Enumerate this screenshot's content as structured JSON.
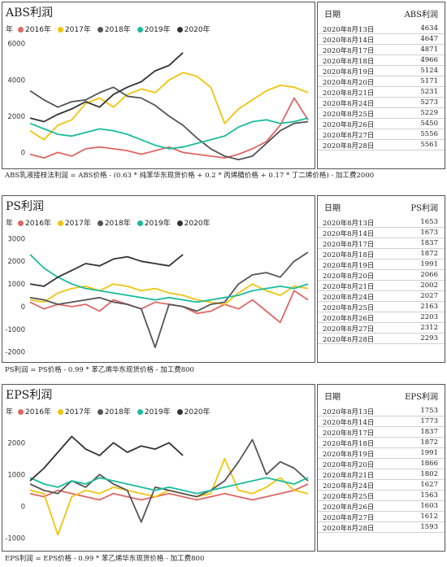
{
  "legend_label": "年",
  "colors": {
    "2016年": "#e06666",
    "2017年": "#f2c40f",
    "2018年": "#555555",
    "2019年": "#1abc9c",
    "2020年": "#333333"
  },
  "charts": [
    {
      "id": "abs",
      "title": "ABS利润",
      "table_header": {
        "date": "日期",
        "value": "ABS利润"
      },
      "table_rows": [
        {
          "date": "2020年8月13日",
          "value": "4634"
        },
        {
          "date": "2020年8月14日",
          "value": "4647"
        },
        {
          "date": "2020年8月17日",
          "value": "4871"
        },
        {
          "date": "2020年8月18日",
          "value": "4966"
        },
        {
          "date": "2020年8月19日",
          "value": "5124"
        },
        {
          "date": "2020年8月20日",
          "value": "5171"
        },
        {
          "date": "2020年8月21日",
          "value": "5231"
        },
        {
          "date": "2020年8月24日",
          "value": "5273"
        },
        {
          "date": "2020年8月25日",
          "value": "5229"
        },
        {
          "date": "2020年8月26日",
          "value": "5450"
        },
        {
          "date": "2020年8月27日",
          "value": "5556"
        },
        {
          "date": "2020年8月28日",
          "value": "5561"
        }
      ],
      "formula": "ABS乳液接枝法利润 = ABS价格 - (0.63 * 纯苯华东现货价格 + 0.2 * 丙烯腈价格 + 0.17 * 丁二烯价格) - 加工费2000"
    },
    {
      "id": "ps",
      "title": "PS利润",
      "table_header": {
        "date": "日期",
        "value": "PS利润"
      },
      "table_rows": [
        {
          "date": "2020年8月13日",
          "value": "1653"
        },
        {
          "date": "2020年8月14日",
          "value": "1673"
        },
        {
          "date": "2020年8月17日",
          "value": "1837"
        },
        {
          "date": "2020年8月18日",
          "value": "1872"
        },
        {
          "date": "2020年8月19日",
          "value": "1991"
        },
        {
          "date": "2020年8月20日",
          "value": "2066"
        },
        {
          "date": "2020年8月21日",
          "value": "2002"
        },
        {
          "date": "2020年8月24日",
          "value": "2027"
        },
        {
          "date": "2020年8月25日",
          "value": "2163"
        },
        {
          "date": "2020年8月26日",
          "value": "2203"
        },
        {
          "date": "2020年8月27日",
          "value": "2312"
        },
        {
          "date": "2020年8月28日",
          "value": "2293"
        }
      ],
      "formula": "PS利润 = PS价格 - 0.99 * 苯乙烯华东现货价格 - 加工费800"
    },
    {
      "id": "eps",
      "title": "EPS利润",
      "table_header": {
        "date": "日期",
        "value": "EPS利润"
      },
      "table_rows": [
        {
          "date": "2020年8月13日",
          "value": "1753"
        },
        {
          "date": "2020年8月14日",
          "value": "1773"
        },
        {
          "date": "2020年8月17日",
          "value": "1837"
        },
        {
          "date": "2020年8月18日",
          "value": "1872"
        },
        {
          "date": "2020年8月19日",
          "value": "1991"
        },
        {
          "date": "2020年8月20日",
          "value": "1866"
        },
        {
          "date": "2020年8月21日",
          "value": "1802"
        },
        {
          "date": "2020年8月24日",
          "value": "1627"
        },
        {
          "date": "2020年8月25日",
          "value": "1563"
        },
        {
          "date": "2020年8月26日",
          "value": "1603"
        },
        {
          "date": "2020年8月27日",
          "value": "1612"
        },
        {
          "date": "2020年8月28日",
          "value": "1593"
        }
      ],
      "formula": "EPS利润 = EPS价格 - 0.99 * 苯乙烯华东现货价格 - 加工费800"
    }
  ],
  "chart_data": [
    {
      "type": "line",
      "title": "ABS利润",
      "x_range": [
        0,
        1
      ],
      "yticks": [
        0,
        2000,
        4000,
        6000
      ],
      "ylim": [
        -700,
        6300
      ],
      "grid": false,
      "legend": "top-left",
      "series": [
        {
          "name": "2016年",
          "x": [
            0,
            0.05,
            0.1,
            0.15,
            0.2,
            0.25,
            0.3,
            0.35,
            0.4,
            0.45,
            0.5,
            0.55,
            0.6,
            0.65,
            0.7,
            0.75,
            0.8,
            0.85,
            0.9,
            0.95,
            1.0
          ],
          "y": [
            -100,
            -300,
            0,
            -200,
            200,
            300,
            200,
            100,
            -100,
            100,
            300,
            0,
            -100,
            -200,
            -300,
            -100,
            200,
            600,
            1500,
            3000,
            1800
          ]
        },
        {
          "name": "2017年",
          "x": [
            0,
            0.05,
            0.1,
            0.15,
            0.2,
            0.25,
            0.3,
            0.35,
            0.4,
            0.45,
            0.5,
            0.55,
            0.6,
            0.65,
            0.7,
            0.75,
            0.8,
            0.85,
            0.9,
            0.95,
            1.0
          ],
          "y": [
            1200,
            700,
            1500,
            1800,
            2700,
            3000,
            2500,
            3200,
            3500,
            3300,
            4000,
            4400,
            4200,
            3600,
            1600,
            2400,
            2900,
            3400,
            3700,
            3600,
            3300
          ]
        },
        {
          "name": "2018年",
          "x": [
            0,
            0.05,
            0.1,
            0.15,
            0.2,
            0.25,
            0.3,
            0.35,
            0.4,
            0.45,
            0.5,
            0.55,
            0.6,
            0.65,
            0.7,
            0.75,
            0.8,
            0.85,
            0.9,
            0.95,
            1.0
          ],
          "y": [
            3400,
            2900,
            2500,
            2800,
            2900,
            3300,
            3600,
            3100,
            3000,
            2600,
            2000,
            1500,
            800,
            200,
            -200,
            -400,
            -200,
            500,
            1200,
            1600,
            1700
          ]
        },
        {
          "name": "2019年",
          "x": [
            0,
            0.05,
            0.1,
            0.15,
            0.2,
            0.25,
            0.3,
            0.35,
            0.4,
            0.45,
            0.5,
            0.55,
            0.6,
            0.65,
            0.7,
            0.75,
            0.8,
            0.85,
            0.9,
            0.95,
            1.0
          ],
          "y": [
            1600,
            1300,
            1000,
            900,
            1100,
            1300,
            1200,
            1000,
            700,
            400,
            200,
            300,
            500,
            700,
            900,
            1400,
            1700,
            1800,
            1600,
            1700,
            1900
          ]
        },
        {
          "name": "2020年",
          "x": [
            0,
            0.05,
            0.1,
            0.15,
            0.2,
            0.25,
            0.3,
            0.35,
            0.4,
            0.45,
            0.5,
            0.55
          ],
          "y": [
            1900,
            1700,
            2100,
            2400,
            2800,
            2500,
            3200,
            3600,
            3900,
            4500,
            4800,
            5500
          ]
        }
      ]
    },
    {
      "type": "line",
      "title": "PS利润",
      "x_range": [
        0,
        1
      ],
      "yticks": [
        -2000,
        -1000,
        0,
        1000,
        2000,
        3000
      ],
      "ylim": [
        -2300,
        3300
      ],
      "grid": false,
      "legend": "top-left",
      "series": [
        {
          "name": "2016年",
          "x": [
            0,
            0.05,
            0.1,
            0.15,
            0.2,
            0.25,
            0.3,
            0.35,
            0.4,
            0.45,
            0.5,
            0.55,
            0.6,
            0.65,
            0.7,
            0.75,
            0.8,
            0.85,
            0.9,
            0.95,
            1.0
          ],
          "y": [
            200,
            -100,
            100,
            0,
            100,
            -200,
            300,
            100,
            -100,
            200,
            100,
            0,
            -300,
            -200,
            100,
            -100,
            300,
            -200,
            -700,
            700,
            300
          ]
        },
        {
          "name": "2017年",
          "x": [
            0,
            0.05,
            0.1,
            0.15,
            0.2,
            0.25,
            0.3,
            0.35,
            0.4,
            0.45,
            0.5,
            0.55,
            0.6,
            0.65,
            0.7,
            0.75,
            0.8,
            0.85,
            0.9,
            0.95,
            1.0
          ],
          "y": [
            300,
            200,
            600,
            800,
            900,
            700,
            1000,
            900,
            700,
            800,
            600,
            500,
            300,
            200,
            100,
            600,
            1000,
            700,
            500,
            900,
            800
          ]
        },
        {
          "name": "2018年",
          "x": [
            0,
            0.05,
            0.1,
            0.15,
            0.2,
            0.25,
            0.3,
            0.35,
            0.4,
            0.45,
            0.5,
            0.55,
            0.6,
            0.65,
            0.7,
            0.75,
            0.8,
            0.85,
            0.9,
            0.95,
            1.0
          ],
          "y": [
            400,
            300,
            100,
            200,
            300,
            400,
            200,
            100,
            -100,
            -1800,
            100,
            0,
            -200,
            100,
            200,
            1000,
            1400,
            1500,
            1300,
            2000,
            2400
          ]
        },
        {
          "name": "2019年",
          "x": [
            0,
            0.05,
            0.1,
            0.15,
            0.2,
            0.25,
            0.3,
            0.35,
            0.4,
            0.45,
            0.5,
            0.55,
            0.6,
            0.65,
            0.7,
            0.75,
            0.8,
            0.85,
            0.9,
            0.95,
            1.0
          ],
          "y": [
            2300,
            1700,
            1300,
            1000,
            800,
            700,
            600,
            500,
            400,
            300,
            400,
            300,
            200,
            300,
            400,
            500,
            700,
            800,
            900,
            800,
            1000
          ]
        },
        {
          "name": "2020年",
          "x": [
            0,
            0.05,
            0.1,
            0.15,
            0.2,
            0.25,
            0.3,
            0.35,
            0.4,
            0.45,
            0.5,
            0.55
          ],
          "y": [
            1000,
            900,
            1300,
            1600,
            1900,
            1800,
            2100,
            2200,
            2000,
            1900,
            1800,
            2300
          ]
        }
      ]
    },
    {
      "type": "line",
      "title": "EPS利润",
      "x_range": [
        0,
        1
      ],
      "yticks": [
        -1000,
        0,
        1000,
        2000
      ],
      "ylim": [
        -1300,
        2700
      ],
      "grid": false,
      "legend": "top-left",
      "series": [
        {
          "name": "2016年",
          "x": [
            0,
            0.05,
            0.1,
            0.15,
            0.2,
            0.25,
            0.3,
            0.35,
            0.4,
            0.45,
            0.5,
            0.55,
            0.6,
            0.65,
            0.7,
            0.75,
            0.8,
            0.85,
            0.9,
            0.95,
            1.0
          ],
          "y": [
            400,
            300,
            500,
            400,
            300,
            200,
            400,
            300,
            200,
            300,
            400,
            300,
            200,
            300,
            400,
            300,
            200,
            300,
            400,
            500,
            700
          ]
        },
        {
          "name": "2017年",
          "x": [
            0,
            0.05,
            0.1,
            0.15,
            0.2,
            0.25,
            0.3,
            0.35,
            0.4,
            0.45,
            0.5,
            0.55,
            0.6,
            0.65,
            0.7,
            0.75,
            0.8,
            0.85,
            0.9,
            0.95,
            1.0
          ],
          "y": [
            500,
            400,
            -900,
            300,
            500,
            400,
            600,
            500,
            400,
            300,
            500,
            400,
            300,
            400,
            1500,
            500,
            400,
            600,
            900,
            500,
            400
          ]
        },
        {
          "name": "2018年",
          "x": [
            0,
            0.05,
            0.1,
            0.15,
            0.2,
            0.25,
            0.3,
            0.35,
            0.4,
            0.45,
            0.5,
            0.55,
            0.6,
            0.65,
            0.7,
            0.75,
            0.8,
            0.85,
            0.9,
            0.95,
            1.0
          ],
          "y": [
            700,
            500,
            400,
            800,
            600,
            1000,
            700,
            500,
            -500,
            600,
            500,
            400,
            300,
            500,
            800,
            1400,
            2100,
            1000,
            1400,
            1200,
            800
          ]
        },
        {
          "name": "2019年",
          "x": [
            0,
            0.05,
            0.1,
            0.15,
            0.2,
            0.25,
            0.3,
            0.35,
            0.4,
            0.45,
            0.5,
            0.55,
            0.6,
            0.65,
            0.7,
            0.75,
            0.8,
            0.85,
            0.9,
            0.95,
            1.0
          ],
          "y": [
            900,
            700,
            600,
            800,
            700,
            900,
            800,
            700,
            600,
            500,
            600,
            500,
            400,
            500,
            600,
            700,
            800,
            900,
            800,
            700,
            900
          ]
        },
        {
          "name": "2020年",
          "x": [
            0,
            0.05,
            0.1,
            0.15,
            0.2,
            0.25,
            0.3,
            0.35,
            0.4,
            0.45,
            0.5,
            0.55
          ],
          "y": [
            800,
            1200,
            1700,
            2200,
            1800,
            1600,
            2000,
            1700,
            1900,
            1800,
            2000,
            1600
          ]
        }
      ]
    }
  ]
}
